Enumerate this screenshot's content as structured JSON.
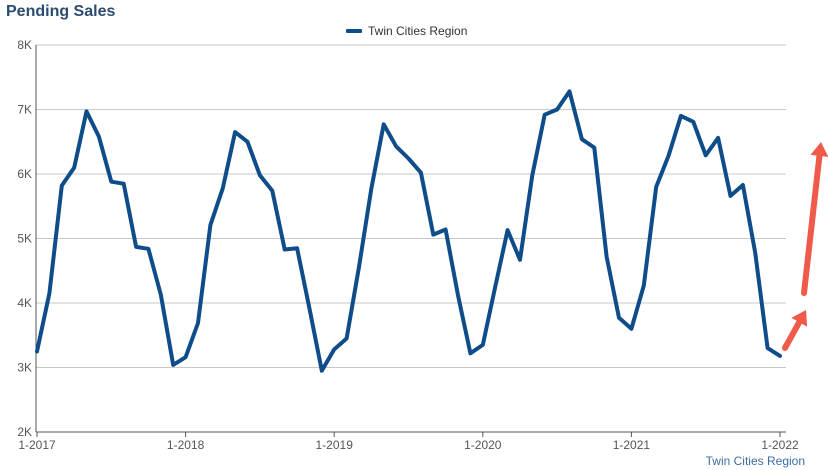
{
  "title": "Pending Sales",
  "source_label": "Twin Cities Region",
  "colors": {
    "series": "#0e4d8a",
    "grid": "#c8c8c8",
    "axis": "#555555",
    "arrow": "#f05a4a",
    "title": "#2b4c6f",
    "source": "#3a6ea5"
  },
  "chart_data": {
    "type": "line",
    "title": "Pending Sales",
    "xlabel": "",
    "ylabel": "",
    "ylim": [
      2000,
      8000
    ],
    "y_ticks": [
      2000,
      3000,
      4000,
      5000,
      6000,
      7000,
      8000
    ],
    "y_tick_labels": [
      "2K",
      "3K",
      "4K",
      "5K",
      "6K",
      "7K",
      "8K"
    ],
    "x_tick_labels": [
      "1-2017",
      "1-2018",
      "1-2019",
      "1-2020",
      "1-2021",
      "1-2022"
    ],
    "x_tick_months": [
      0,
      12,
      24,
      36,
      48,
      60
    ],
    "grid": true,
    "legend_position": "top-center",
    "annotations": "two red upward arrows at right",
    "series": [
      {
        "name": "Twin Cities Region",
        "start": "1-2017",
        "values": [
          3250,
          4150,
          5820,
          6100,
          6970,
          6580,
          5880,
          5850,
          4870,
          4840,
          4130,
          3040,
          3160,
          3690,
          5210,
          5780,
          6650,
          6500,
          5980,
          5740,
          4830,
          4850,
          3920,
          2950,
          3280,
          3450,
          4560,
          5780,
          6770,
          6430,
          6240,
          6020,
          5060,
          5140,
          4120,
          3220,
          3350,
          4250,
          5130,
          4670,
          5980,
          6920,
          7000,
          7280,
          6540,
          6410,
          4720,
          3770,
          3600,
          4270,
          5800,
          6280,
          6900,
          6810,
          6290,
          6560,
          5660,
          5830,
          4780,
          3300,
          3180
        ]
      }
    ]
  }
}
